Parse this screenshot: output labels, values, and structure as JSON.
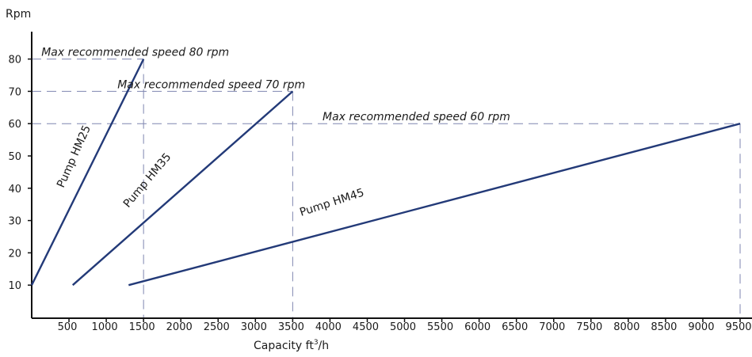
{
  "chart_data": {
    "type": "line",
    "ylabel": "Rpm",
    "xlabel_main": "Capacity ft",
    "xlabel_sup": "3",
    "xlabel_tail": "/h",
    "xlim": [
      0,
      9500
    ],
    "ylim": [
      0,
      80
    ],
    "x_ticks": [
      500,
      1000,
      1500,
      2000,
      2500,
      3000,
      3500,
      4000,
      4500,
      5000,
      5500,
      6000,
      6500,
      7000,
      7500,
      8000,
      8500,
      9000,
      9500
    ],
    "y_ticks": [
      10,
      20,
      30,
      40,
      50,
      60,
      70,
      80
    ],
    "series": [
      {
        "name": "Pump HM25",
        "x": [
          0,
          1500
        ],
        "y": [
          10,
          80
        ]
      },
      {
        "name": "Pump HM35",
        "x": [
          550,
          3500
        ],
        "y": [
          10,
          70
        ]
      },
      {
        "name": "Pump HM45",
        "x": [
          1300,
          9500
        ],
        "y": [
          10,
          60
        ]
      }
    ],
    "annotations": [
      {
        "text": "Max recommended speed 80 rpm",
        "y": 80,
        "x_end": 1500
      },
      {
        "text": "Max recommended speed 70 rpm",
        "y": 70,
        "x_end": 3500
      },
      {
        "text": "Max recommended speed 60 rpm",
        "y": 60,
        "x_end": 9500
      }
    ],
    "colors": {
      "series": "#233a78",
      "guides": "#7f86b0",
      "axis": "#111111"
    }
  }
}
